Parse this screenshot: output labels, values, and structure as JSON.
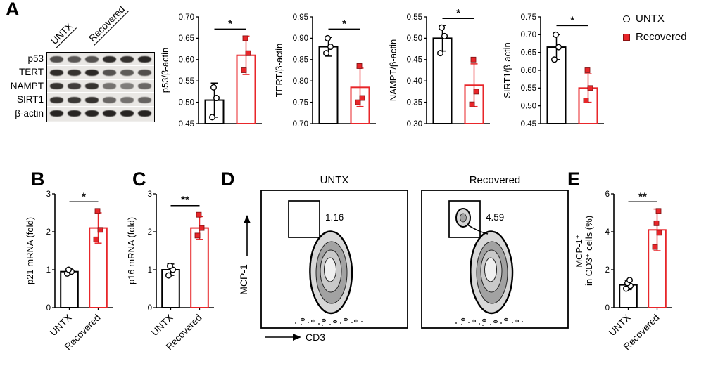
{
  "figure": {
    "panel_labels": [
      "A",
      "B",
      "C",
      "D",
      "E"
    ]
  },
  "legend": {
    "items": [
      {
        "label": "UNTX",
        "marker": "circle",
        "color": "#000000"
      },
      {
        "label": "Recovered",
        "marker": "square",
        "color": "#e8262a"
      }
    ]
  },
  "blot": {
    "col_labels": [
      "UNTX",
      "Recovered"
    ],
    "rows": [
      {
        "label": "p53",
        "bands": [
          0.72,
          0.68,
          0.7,
          0.88,
          0.85,
          0.9
        ]
      },
      {
        "label": "TERT",
        "bands": [
          0.88,
          0.85,
          0.9,
          0.7,
          0.66,
          0.72
        ]
      },
      {
        "label": "NAMPT",
        "bands": [
          0.85,
          0.8,
          0.85,
          0.55,
          0.5,
          0.6
        ]
      },
      {
        "label": "SIRT1",
        "bands": [
          0.85,
          0.82,
          0.85,
          0.6,
          0.55,
          0.62
        ]
      },
      {
        "label": "β-actin",
        "bands": [
          0.92,
          0.92,
          0.92,
          0.92,
          0.92,
          0.92
        ]
      }
    ]
  },
  "flow": {
    "xlabel": "CD3",
    "ylabel": "MCP-1",
    "plots": [
      {
        "title": "UNTX",
        "gate_value": "1.16",
        "gate_population": false
      },
      {
        "title": "Recovered",
        "gate_value": "4.59",
        "gate_population": true
      }
    ]
  },
  "chart_data": [
    {
      "id": "p53",
      "type": "bar",
      "title": "",
      "xlabel": "",
      "ylabel": [
        "p53/β-actin"
      ],
      "ylim": [
        0.45,
        0.7
      ],
      "yticks": [
        "0.45",
        "0.50",
        "0.55",
        "0.60",
        "0.65",
        "0.70"
      ],
      "categories": [
        "UNTX",
        "Recovered"
      ],
      "series": [
        {
          "name": "UNTX",
          "mean": 0.505,
          "sd": 0.04,
          "points": [
            0.465,
            0.51,
            0.535
          ],
          "color": "#000000",
          "marker": "circle"
        },
        {
          "name": "Recovered",
          "mean": 0.61,
          "sd": 0.045,
          "points": [
            0.575,
            0.615,
            0.65
          ],
          "color": "#e8262a",
          "marker": "square"
        }
      ],
      "significance": "*",
      "show_xlabels": false
    },
    {
      "id": "tert",
      "type": "bar",
      "title": "",
      "xlabel": "",
      "ylabel": [
        "TERT/β-actin"
      ],
      "ylim": [
        0.7,
        0.95
      ],
      "yticks": [
        "0.70",
        "0.75",
        "0.80",
        "0.85",
        "0.90",
        "0.95"
      ],
      "categories": [
        "UNTX",
        "Recovered"
      ],
      "series": [
        {
          "name": "UNTX",
          "mean": 0.88,
          "sd": 0.022,
          "points": [
            0.865,
            0.88,
            0.9
          ],
          "color": "#000000",
          "marker": "circle"
        },
        {
          "name": "Recovered",
          "mean": 0.785,
          "sd": 0.045,
          "points": [
            0.75,
            0.76,
            0.835
          ],
          "color": "#e8262a",
          "marker": "square"
        }
      ],
      "significance": "*",
      "show_xlabels": false
    },
    {
      "id": "nampt",
      "type": "bar",
      "title": "",
      "xlabel": "",
      "ylabel": [
        "NAMPT/β-actin"
      ],
      "ylim": [
        0.3,
        0.55
      ],
      "yticks": [
        "0.30",
        "0.35",
        "0.40",
        "0.45",
        "0.50",
        "0.55"
      ],
      "categories": [
        "UNTX",
        "Recovered"
      ],
      "series": [
        {
          "name": "UNTX",
          "mean": 0.5,
          "sd": 0.03,
          "points": [
            0.465,
            0.505,
            0.525
          ],
          "color": "#000000",
          "marker": "circle"
        },
        {
          "name": "Recovered",
          "mean": 0.39,
          "sd": 0.05,
          "points": [
            0.345,
            0.375,
            0.45
          ],
          "color": "#e8262a",
          "marker": "square"
        }
      ],
      "significance": "*",
      "show_xlabels": false
    },
    {
      "id": "sirt1",
      "type": "bar",
      "title": "",
      "xlabel": "",
      "ylabel": [
        "SIRT1/β-actin"
      ],
      "ylim": [
        0.45,
        0.75
      ],
      "yticks": [
        "0.45",
        "0.50",
        "0.55",
        "0.60",
        "0.65",
        "0.70",
        "0.75"
      ],
      "categories": [
        "UNTX",
        "Recovered"
      ],
      "series": [
        {
          "name": "UNTX",
          "mean": 0.665,
          "sd": 0.035,
          "points": [
            0.63,
            0.665,
            0.7
          ],
          "color": "#000000",
          "marker": "circle"
        },
        {
          "name": "Recovered",
          "mean": 0.55,
          "sd": 0.04,
          "points": [
            0.515,
            0.55,
            0.6
          ],
          "color": "#e8262a",
          "marker": "square"
        }
      ],
      "significance": "*",
      "show_xlabels": false
    },
    {
      "id": "p21",
      "type": "bar",
      "title": "",
      "xlabel": "",
      "ylabel": [
        "p21 mRNA (fold)"
      ],
      "ylim": [
        0,
        3
      ],
      "yticks": [
        "0",
        "1",
        "2",
        "3"
      ],
      "categories": [
        "UNTX",
        "Recovered"
      ],
      "series": [
        {
          "name": "UNTX",
          "mean": 0.95,
          "sd": 0.07,
          "points": [
            0.9,
            0.95,
            1.0
          ],
          "color": "#000000",
          "marker": "circle"
        },
        {
          "name": "Recovered",
          "mean": 2.1,
          "sd": 0.4,
          "points": [
            1.8,
            2.05,
            2.55
          ],
          "color": "#e8262a",
          "marker": "square"
        }
      ],
      "significance": "*",
      "show_xlabels": true
    },
    {
      "id": "p16",
      "type": "bar",
      "title": "",
      "xlabel": "",
      "ylabel": [
        "p16 mRNA (fold)"
      ],
      "ylim": [
        0,
        3
      ],
      "yticks": [
        "0",
        "1",
        "2",
        "3"
      ],
      "categories": [
        "UNTX",
        "Recovered"
      ],
      "series": [
        {
          "name": "UNTX",
          "mean": 1.0,
          "sd": 0.15,
          "points": [
            0.85,
            1.0,
            1.1
          ],
          "color": "#000000",
          "marker": "circle"
        },
        {
          "name": "Recovered",
          "mean": 2.1,
          "sd": 0.3,
          "points": [
            1.9,
            2.1,
            2.45
          ],
          "color": "#e8262a",
          "marker": "square"
        }
      ],
      "significance": "**",
      "show_xlabels": true
    },
    {
      "id": "mcp1",
      "type": "bar",
      "title": "",
      "xlabel": "",
      "ylabel": [
        "MCP-1⁺",
        "in CD3⁺ cells (%)"
      ],
      "ylim": [
        0,
        6
      ],
      "yticks": [
        "0",
        "2",
        "4",
        "6"
      ],
      "categories": [
        "UNTX",
        "Recovered"
      ],
      "series": [
        {
          "name": "UNTX",
          "mean": 1.2,
          "sd": 0.25,
          "points": [
            1.0,
            1.15,
            1.3,
            1.45
          ],
          "color": "#000000",
          "marker": "circle"
        },
        {
          "name": "Recovered",
          "mean": 4.1,
          "sd": 1.1,
          "points": [
            3.2,
            3.95,
            4.45,
            5.1
          ],
          "color": "#e8262a",
          "marker": "square"
        }
      ],
      "significance": "**",
      "show_xlabels": true
    }
  ]
}
